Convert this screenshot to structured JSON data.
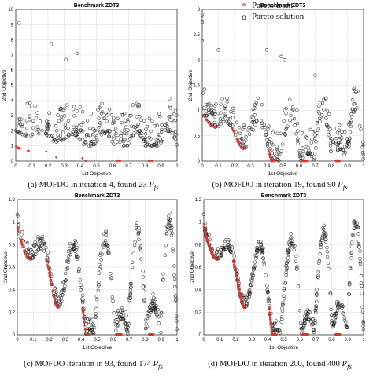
{
  "legend": {
    "pareto_front": "Pareto front",
    "pareto_solution": "Pareto solution",
    "pareto_front_symbol": "*",
    "pareto_solution_symbol": "o"
  },
  "colors": {
    "pareto_front": "#d9342b",
    "pareto_solution": "#222222",
    "grid": "#e2e2e2"
  },
  "panels": [
    {
      "id": "a",
      "title": "Benchmark  ZDT3",
      "xlabel": "1st Objective",
      "ylabel": "2nd Objective",
      "caption": "(a) MOFDO in iteration 4, found 23 ",
      "caption_sym": "Pfs",
      "xlim": [
        0,
        1
      ],
      "ylim": [
        0,
        10
      ],
      "xticks": [
        "0",
        "0.1",
        "0.2",
        "0.3",
        "0.4",
        "0.5",
        "0.6",
        "0.7",
        "0.8",
        "0.9",
        "1"
      ],
      "yticks": [
        "0",
        "1",
        "2",
        "3",
        "4",
        "5",
        "6",
        "7",
        "8",
        "9",
        "10"
      ],
      "cloud": {
        "count": 330,
        "spread": 2.2,
        "base": 1.0,
        "seed": 11,
        "outliers": [
          [
            0.02,
            9.1
          ],
          [
            0.22,
            7.7
          ],
          [
            0.38,
            7.1
          ],
          [
            0.31,
            6.7
          ]
        ]
      },
      "front_count": 23
    },
    {
      "id": "b",
      "title": "Benchmark  ZDT3",
      "xlabel": "1st Objective",
      "ylabel": "2nd Objective",
      "caption": "(b) MOFDO  in iteration 19, found 90 ",
      "caption_sym": "Pfs",
      "xlim": [
        0,
        1
      ],
      "ylim": [
        0,
        3
      ],
      "xticks": [
        "0",
        "0.1",
        "0.2",
        "0.3",
        "0.4",
        "0.5",
        "0.6",
        "0.7",
        "0.8",
        "0.9",
        "1"
      ],
      "yticks": [
        "0",
        "0.5",
        "1",
        "1.5",
        "2",
        "2.5",
        "3"
      ],
      "cloud": {
        "count": 320,
        "spread": 0.55,
        "base": 0.05,
        "seed": 23,
        "outliers": [
          [
            0.0,
            2.9
          ],
          [
            0.0,
            2.75
          ],
          [
            0.0,
            2.38
          ],
          [
            0.4,
            2.2
          ],
          [
            0.49,
            2.07
          ],
          [
            0.51,
            2.0
          ],
          [
            0.1,
            2.2
          ],
          [
            0.7,
            1.7
          ]
        ]
      },
      "front_count": 90
    },
    {
      "id": "c",
      "title": "Benchmark  ZDT3",
      "xlabel": "1st Objective",
      "ylabel": "2nd Objective",
      "caption": "(c) MOFDO iteration in 93, found 174 ",
      "caption_sym": "Pfs",
      "xlim": [
        0,
        1
      ],
      "ylim": [
        0,
        1.2
      ],
      "xticks": [
        "0",
        "0.1",
        "0.2",
        "0.3",
        "0.4",
        "0.5",
        "0.6",
        "0.7",
        "0.8",
        "0.9",
        "1"
      ],
      "yticks": [
        "0",
        "0.2",
        "0.4",
        "0.6",
        "0.8",
        "1",
        "1.2"
      ],
      "cloud": {
        "count": 420,
        "spread": 0.13,
        "base": 0.0,
        "seed": 37,
        "outliers": [
          [
            0.0,
            1.07
          ],
          [
            0.01,
            0.98
          ]
        ]
      },
      "front_count": 174
    },
    {
      "id": "d",
      "title": "Benchmark  ZDT3",
      "xlabel": "1st Objective",
      "ylabel": "2nd Objective",
      "caption": "(d) MOFDO in iteration 200, found 400 ",
      "caption_sym": "Pfs",
      "xlim": [
        0,
        1
      ],
      "ylim": [
        0,
        1.2
      ],
      "xticks": [
        "0",
        "0.1",
        "0.2",
        "0.3",
        "0.4",
        "0.5",
        "0.6",
        "0.7",
        "0.8",
        "0.9",
        "1"
      ],
      "yticks": [
        "0",
        "0.2",
        "0.4",
        "0.6",
        "0.8",
        "1",
        "1.2"
      ],
      "cloud": {
        "count": 450,
        "spread": 0.1,
        "base": 0.0,
        "seed": 53,
        "outliers": [
          [
            0.0,
            1.07
          ],
          [
            0.01,
            0.99
          ]
        ]
      },
      "front_count": 400
    }
  ],
  "chart_data": [
    {
      "type": "scatter",
      "title": "Benchmark  ZDT3",
      "xlabel": "1st Objective",
      "ylabel": "2nd Objective",
      "xlim": [
        0,
        1
      ],
      "ylim": [
        0,
        10
      ],
      "series": [
        {
          "name": "Pareto front"
        },
        {
          "name": "Pareto solution"
        }
      ],
      "legend": "top-right"
    },
    {
      "type": "scatter",
      "title": "Benchmark  ZDT3",
      "xlabel": "1st Objective",
      "ylabel": "2nd Objective",
      "xlim": [
        0,
        1
      ],
      "ylim": [
        0,
        3
      ],
      "series": [
        {
          "name": "Pareto front"
        },
        {
          "name": "Pareto solution"
        }
      ]
    },
    {
      "type": "scatter",
      "title": "Benchmark  ZDT3",
      "xlabel": "1st Objective",
      "ylabel": "2nd Objective",
      "xlim": [
        0,
        1
      ],
      "ylim": [
        0,
        1.2
      ],
      "series": [
        {
          "name": "Pareto front"
        },
        {
          "name": "Pareto solution"
        }
      ]
    },
    {
      "type": "scatter",
      "title": "Benchmark  ZDT3",
      "xlabel": "1st Objective",
      "ylabel": "2nd Objective",
      "xlim": [
        0,
        1
      ],
      "ylim": [
        0,
        1.2
      ],
      "series": [
        {
          "name": "Pareto front"
        },
        {
          "name": "Pareto solution"
        }
      ]
    }
  ]
}
